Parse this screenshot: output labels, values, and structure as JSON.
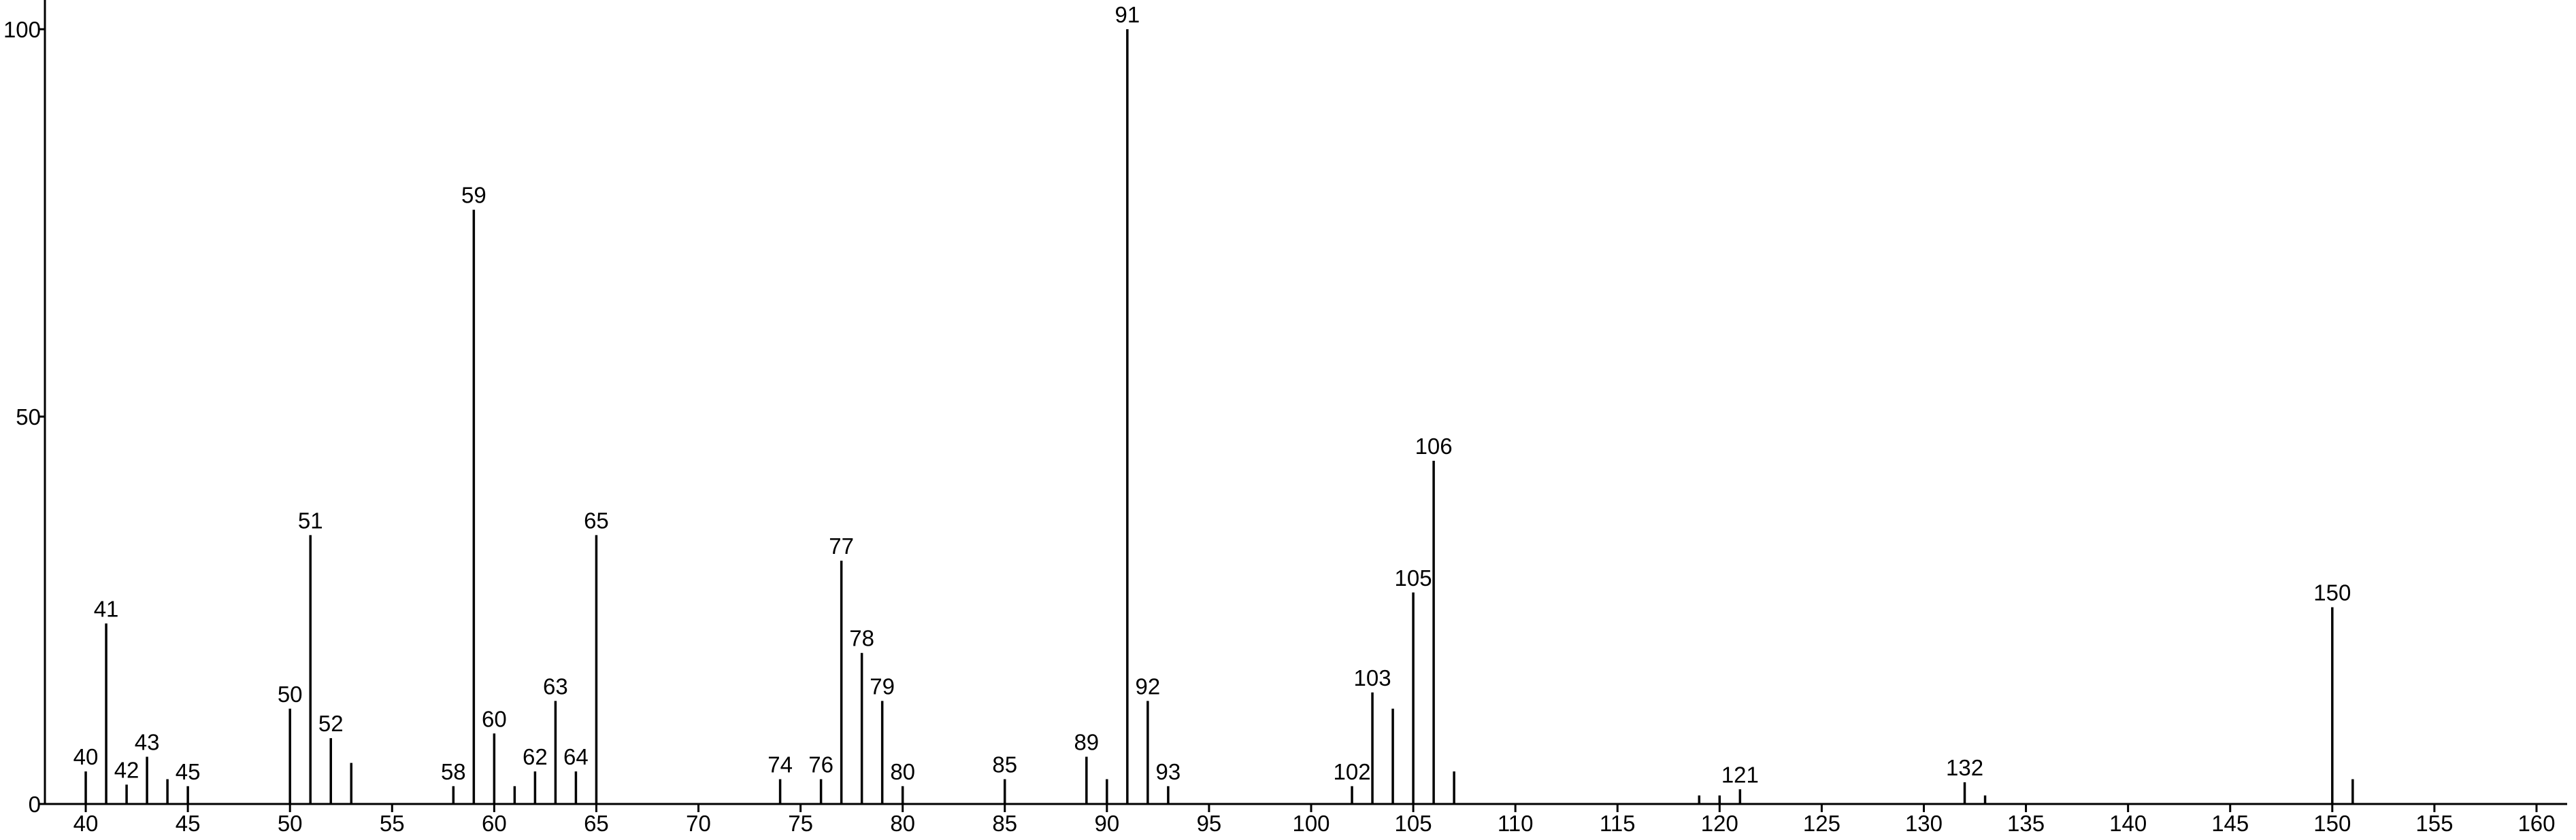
{
  "chart_data": {
    "type": "stem",
    "x": [
      40,
      41,
      42,
      43,
      44,
      45,
      50,
      51,
      52,
      53,
      58,
      59,
      60,
      61,
      62,
      63,
      64,
      65,
      74,
      76,
      77,
      78,
      79,
      80,
      85,
      89,
      90,
      91,
      92,
      93,
      102,
      103,
      104,
      105,
      106,
      107,
      119,
      120,
      121,
      132,
      133,
      150,
      151
    ],
    "values": [
      4.2,
      23.3,
      2.5,
      6.1,
      3.2,
      2.3,
      12.3,
      34.7,
      8.5,
      5.3,
      2.3,
      76.7,
      9.1,
      2.3,
      4.2,
      13.3,
      4.2,
      34.7,
      3.2,
      3.2,
      31.4,
      19.5,
      13.3,
      2.3,
      3.2,
      6.1,
      3.2,
      100,
      13.3,
      2.3,
      2.3,
      14.4,
      12.3,
      27.3,
      44.3,
      4.2,
      1.1,
      1.1,
      1.9,
      2.8,
      1.1,
      25.4,
      3.2
    ],
    "value_labels": [
      "40",
      "41",
      "42",
      "43",
      null,
      "45",
      "50",
      "51",
      "52",
      null,
      "58",
      "59",
      "60",
      null,
      "62",
      "63",
      "64",
      "65",
      "74",
      "76",
      "77",
      "78",
      "79",
      "80",
      "85",
      "89",
      null,
      "91",
      "92",
      "93",
      "102",
      "103",
      null,
      "105",
      "106",
      null,
      null,
      null,
      "121",
      "132",
      null,
      "150",
      null
    ],
    "color": "#000000",
    "xlim": [
      38,
      161.5
    ],
    "xticks": [
      40,
      45,
      50,
      55,
      60,
      65,
      70,
      75,
      80,
      85,
      90,
      95,
      100,
      105,
      110,
      115,
      120,
      125,
      130,
      135,
      140,
      145,
      150,
      155,
      160
    ],
    "ylim": [
      0,
      100
    ],
    "yticks": [
      0,
      50,
      100
    ]
  }
}
